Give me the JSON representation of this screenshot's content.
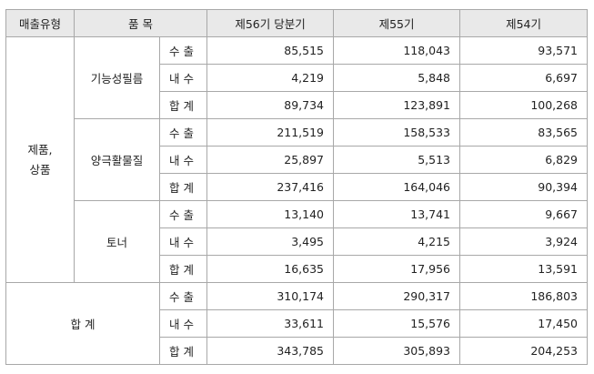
{
  "headers": {
    "sales_type": "매출유형",
    "item": "품 목",
    "p56": "제56기 당분기",
    "p55": "제55기",
    "p54": "제54기"
  },
  "sales_category": [
    "제품,",
    "상품"
  ],
  "groups": [
    {
      "name": "기능성필름",
      "rows": [
        {
          "kind": "수 출",
          "p56": "85,515",
          "p55": "118,043",
          "p54": "93,571"
        },
        {
          "kind": "내 수",
          "p56": "4,219",
          "p55": "5,848",
          "p54": "6,697"
        },
        {
          "kind": "합 계",
          "p56": "89,734",
          "p55": "123,891",
          "p54": "100,268"
        }
      ]
    },
    {
      "name": "양극활물질",
      "rows": [
        {
          "kind": "수 출",
          "p56": "211,519",
          "p55": "158,533",
          "p54": "83,565"
        },
        {
          "kind": "내 수",
          "p56": "25,897",
          "p55": "5,513",
          "p54": "6,829"
        },
        {
          "kind": "합 계",
          "p56": "237,416",
          "p55": "164,046",
          "p54": "90,394"
        }
      ]
    },
    {
      "name": "토너",
      "rows": [
        {
          "kind": "수 출",
          "p56": "13,140",
          "p55": "13,741",
          "p54": "9,667"
        },
        {
          "kind": "내 수",
          "p56": "3,495",
          "p55": "4,215",
          "p54": "3,924"
        },
        {
          "kind": "합 계",
          "p56": "16,635",
          "p55": "17,956",
          "p54": "13,591"
        }
      ]
    }
  ],
  "total": {
    "label": "합 계",
    "rows": [
      {
        "kind": "수 출",
        "p56": "310,174",
        "p55": "290,317",
        "p54": "186,803"
      },
      {
        "kind": "내 수",
        "p56": "33,611",
        "p55": "15,576",
        "p54": "17,450"
      },
      {
        "kind": "합 계",
        "p56": "343,785",
        "p55": "305,893",
        "p54": "204,253"
      }
    ]
  }
}
